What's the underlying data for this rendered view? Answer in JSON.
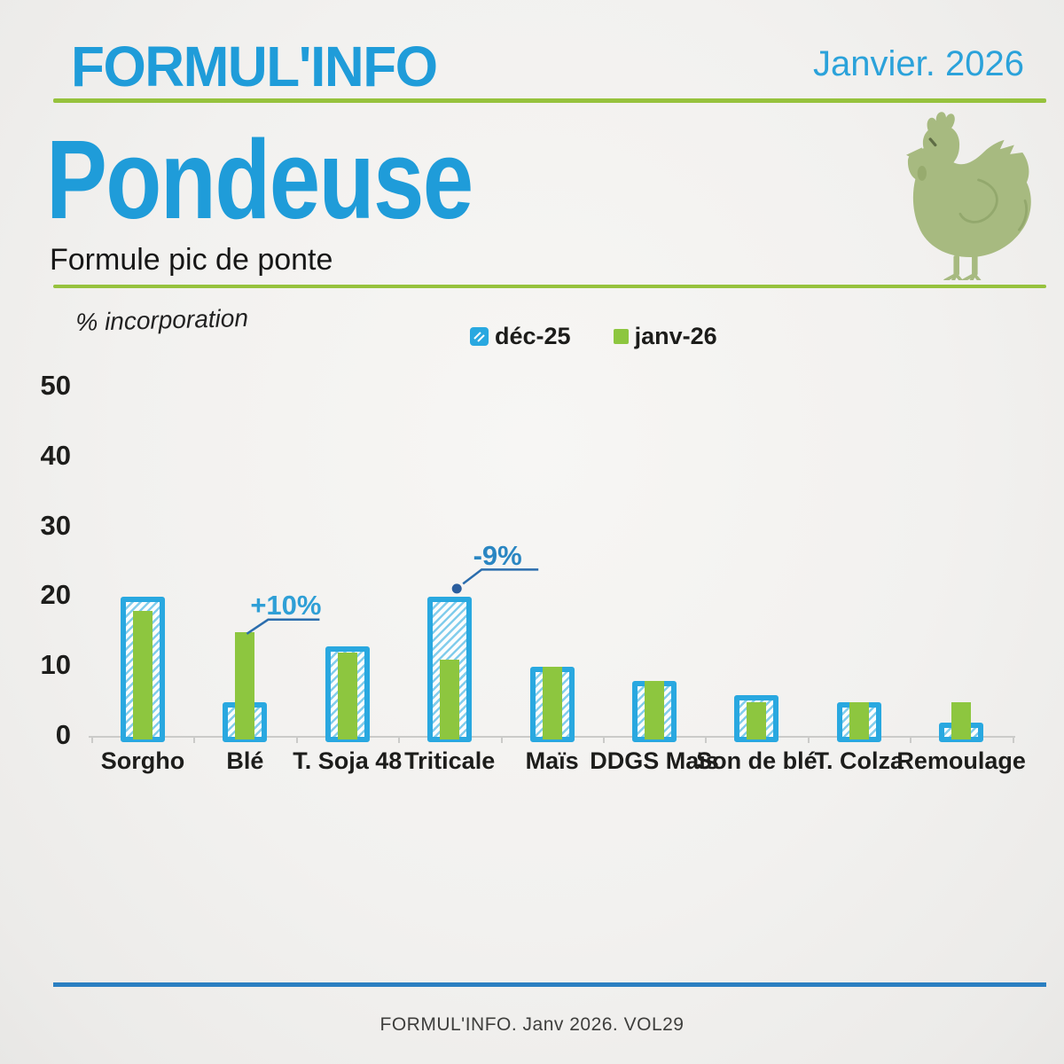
{
  "header": {
    "logo_text": "FORMUL'INFO",
    "date": "Janvier. 2026"
  },
  "title_block": {
    "title": "Pondeuse",
    "subtitle": "Formule pic de ponte"
  },
  "icons": {
    "hen": "hen-icon",
    "dec_swatch": "hatched-blue-swatch-icon",
    "janv_swatch": "green-swatch-icon"
  },
  "chart_data": {
    "type": "bar",
    "title": "% incorporation",
    "xlabel": "",
    "ylabel": "% incorporation",
    "categories": [
      "Sorgho",
      "Blé",
      "T. Soja 48",
      "Triticale",
      "Maïs",
      "DDGS Maïs",
      "Son de blé",
      "T. Colza",
      "Remoulage"
    ],
    "series": [
      {
        "name": "déc-25",
        "style": "hatched",
        "color": "#29a8e0",
        "values": [
          20,
          5,
          13,
          20,
          10,
          8,
          6,
          5,
          2
        ]
      },
      {
        "name": "janv-26",
        "style": "solid",
        "color": "#8dc63f",
        "values": [
          18,
          15,
          12,
          11,
          10,
          8,
          5,
          5,
          5
        ]
      }
    ],
    "yticks": [
      0,
      10,
      20,
      30,
      40,
      50
    ],
    "ylim": [
      0,
      50
    ],
    "grid": false,
    "legend_position": "top-center",
    "annotations": [
      {
        "category": "Blé",
        "series": "janv-26",
        "label": "+10%"
      },
      {
        "category": "Triticale",
        "series": "janv-26",
        "label": "-9%"
      }
    ]
  },
  "footer": {
    "text": "FORMUL'INFO. Janv 2026. VOL29"
  },
  "colors": {
    "accent_blue": "#1f9cd9",
    "bar_blue": "#29a8e0",
    "hatch_blue": "#82cdec",
    "green": "#8dc63f",
    "divider_green": "#96c23d",
    "footer_line_blue": "#2b7fc1",
    "annotation_line": "#2b6dad",
    "annotation_dot": "#2a5d9d",
    "annotation_plus_text": "#2f9fd6",
    "annotation_minus_text": "#2a86c2",
    "hen_green": "#a7ba80",
    "hen_detail_green": "#93a86d",
    "text_dark": "#1d1d1b",
    "axis_gray": "#cbcbc9"
  }
}
